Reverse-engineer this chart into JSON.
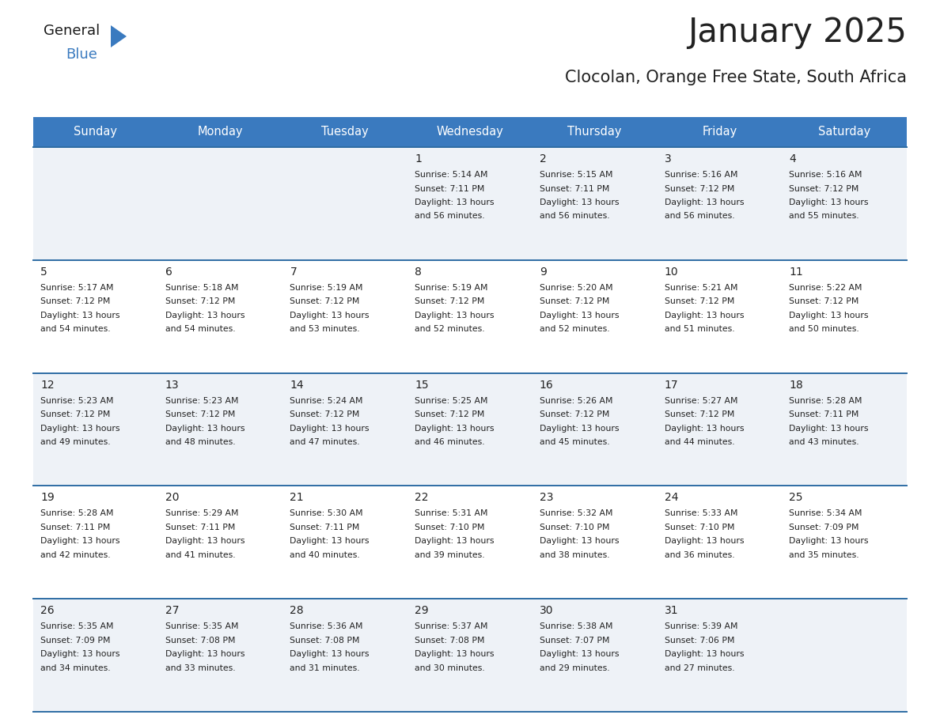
{
  "title": "January 2025",
  "subtitle": "Clocolan, Orange Free State, South Africa",
  "header_bg": "#3a7abf",
  "header_text": "#ffffff",
  "row_bg_odd": "#eef2f7",
  "row_bg_even": "#ffffff",
  "separator_color": "#2e6da4",
  "day_headers": [
    "Sunday",
    "Monday",
    "Tuesday",
    "Wednesday",
    "Thursday",
    "Friday",
    "Saturday"
  ],
  "calendar": [
    [
      {
        "day": "",
        "sunrise": "",
        "sunset": "",
        "daylight": ""
      },
      {
        "day": "",
        "sunrise": "",
        "sunset": "",
        "daylight": ""
      },
      {
        "day": "",
        "sunrise": "",
        "sunset": "",
        "daylight": ""
      },
      {
        "day": "1",
        "sunrise": "5:14 AM",
        "sunset": "7:11 PM",
        "daylight": "13 hours and 56 minutes."
      },
      {
        "day": "2",
        "sunrise": "5:15 AM",
        "sunset": "7:11 PM",
        "daylight": "13 hours and 56 minutes."
      },
      {
        "day": "3",
        "sunrise": "5:16 AM",
        "sunset": "7:12 PM",
        "daylight": "13 hours and 56 minutes."
      },
      {
        "day": "4",
        "sunrise": "5:16 AM",
        "sunset": "7:12 PM",
        "daylight": "13 hours and 55 minutes."
      }
    ],
    [
      {
        "day": "5",
        "sunrise": "5:17 AM",
        "sunset": "7:12 PM",
        "daylight": "13 hours and 54 minutes."
      },
      {
        "day": "6",
        "sunrise": "5:18 AM",
        "sunset": "7:12 PM",
        "daylight": "13 hours and 54 minutes."
      },
      {
        "day": "7",
        "sunrise": "5:19 AM",
        "sunset": "7:12 PM",
        "daylight": "13 hours and 53 minutes."
      },
      {
        "day": "8",
        "sunrise": "5:19 AM",
        "sunset": "7:12 PM",
        "daylight": "13 hours and 52 minutes."
      },
      {
        "day": "9",
        "sunrise": "5:20 AM",
        "sunset": "7:12 PM",
        "daylight": "13 hours and 52 minutes."
      },
      {
        "day": "10",
        "sunrise": "5:21 AM",
        "sunset": "7:12 PM",
        "daylight": "13 hours and 51 minutes."
      },
      {
        "day": "11",
        "sunrise": "5:22 AM",
        "sunset": "7:12 PM",
        "daylight": "13 hours and 50 minutes."
      }
    ],
    [
      {
        "day": "12",
        "sunrise": "5:23 AM",
        "sunset": "7:12 PM",
        "daylight": "13 hours and 49 minutes."
      },
      {
        "day": "13",
        "sunrise": "5:23 AM",
        "sunset": "7:12 PM",
        "daylight": "13 hours and 48 minutes."
      },
      {
        "day": "14",
        "sunrise": "5:24 AM",
        "sunset": "7:12 PM",
        "daylight": "13 hours and 47 minutes."
      },
      {
        "day": "15",
        "sunrise": "5:25 AM",
        "sunset": "7:12 PM",
        "daylight": "13 hours and 46 minutes."
      },
      {
        "day": "16",
        "sunrise": "5:26 AM",
        "sunset": "7:12 PM",
        "daylight": "13 hours and 45 minutes."
      },
      {
        "day": "17",
        "sunrise": "5:27 AM",
        "sunset": "7:12 PM",
        "daylight": "13 hours and 44 minutes."
      },
      {
        "day": "18",
        "sunrise": "5:28 AM",
        "sunset": "7:11 PM",
        "daylight": "13 hours and 43 minutes."
      }
    ],
    [
      {
        "day": "19",
        "sunrise": "5:28 AM",
        "sunset": "7:11 PM",
        "daylight": "13 hours and 42 minutes."
      },
      {
        "day": "20",
        "sunrise": "5:29 AM",
        "sunset": "7:11 PM",
        "daylight": "13 hours and 41 minutes."
      },
      {
        "day": "21",
        "sunrise": "5:30 AM",
        "sunset": "7:11 PM",
        "daylight": "13 hours and 40 minutes."
      },
      {
        "day": "22",
        "sunrise": "5:31 AM",
        "sunset": "7:10 PM",
        "daylight": "13 hours and 39 minutes."
      },
      {
        "day": "23",
        "sunrise": "5:32 AM",
        "sunset": "7:10 PM",
        "daylight": "13 hours and 38 minutes."
      },
      {
        "day": "24",
        "sunrise": "5:33 AM",
        "sunset": "7:10 PM",
        "daylight": "13 hours and 36 minutes."
      },
      {
        "day": "25",
        "sunrise": "5:34 AM",
        "sunset": "7:09 PM",
        "daylight": "13 hours and 35 minutes."
      }
    ],
    [
      {
        "day": "26",
        "sunrise": "5:35 AM",
        "sunset": "7:09 PM",
        "daylight": "13 hours and 34 minutes."
      },
      {
        "day": "27",
        "sunrise": "5:35 AM",
        "sunset": "7:08 PM",
        "daylight": "13 hours and 33 minutes."
      },
      {
        "day": "28",
        "sunrise": "5:36 AM",
        "sunset": "7:08 PM",
        "daylight": "13 hours and 31 minutes."
      },
      {
        "day": "29",
        "sunrise": "5:37 AM",
        "sunset": "7:08 PM",
        "daylight": "13 hours and 30 minutes."
      },
      {
        "day": "30",
        "sunrise": "5:38 AM",
        "sunset": "7:07 PM",
        "daylight": "13 hours and 29 minutes."
      },
      {
        "day": "31",
        "sunrise": "5:39 AM",
        "sunset": "7:06 PM",
        "daylight": "13 hours and 27 minutes."
      },
      {
        "day": "",
        "sunrise": "",
        "sunset": "",
        "daylight": ""
      }
    ]
  ],
  "text_color": "#222222",
  "day_num_fontsize": 10,
  "cell_text_fontsize": 7.8,
  "header_fontsize": 10.5,
  "title_fontsize": 30,
  "subtitle_fontsize": 15,
  "logo_general_color": "#1a1a1a",
  "logo_blue_color": "#3a7abf"
}
